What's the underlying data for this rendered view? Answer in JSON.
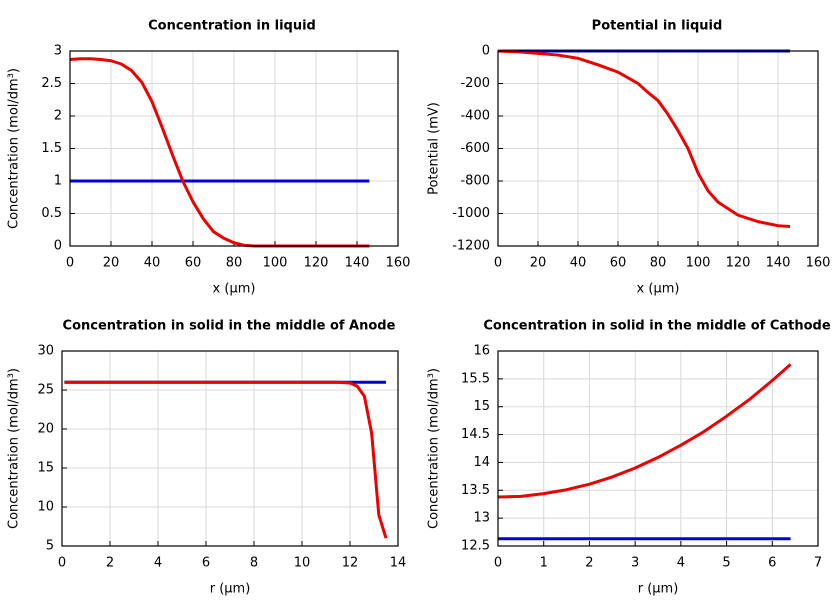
{
  "chart_data": [
    {
      "type": "line",
      "title": "Concentration in liquid",
      "xlabel": "x (µm)",
      "ylabel": "Concentration (mol/dm³)",
      "xlim": [
        0,
        160
      ],
      "ylim": [
        0,
        3
      ],
      "xticks": [
        0,
        20,
        40,
        60,
        80,
        100,
        120,
        140,
        160
      ],
      "yticks": [
        0,
        0.5,
        1,
        1.5,
        2,
        2.5,
        3
      ],
      "grid": true,
      "series": [
        {
          "color": "#0000dd",
          "x": [
            0,
            146
          ],
          "values": [
            1,
            1
          ]
        },
        {
          "color": "#ee0000",
          "x": [
            0,
            5,
            10,
            15,
            20,
            25,
            30,
            35,
            40,
            45,
            50,
            55,
            60,
            65,
            70,
            75,
            80,
            85,
            90,
            100,
            120,
            146
          ],
          "values": [
            2.87,
            2.88,
            2.88,
            2.87,
            2.85,
            2.8,
            2.7,
            2.52,
            2.22,
            1.82,
            1.4,
            1.0,
            0.68,
            0.42,
            0.22,
            0.12,
            0.05,
            0.01,
            0,
            0,
            0,
            0
          ]
        }
      ]
    },
    {
      "type": "line",
      "title": "Potential in liquid",
      "xlabel": "x (µm)",
      "ylabel": "Potential (mV)",
      "xlim": [
        0,
        160
      ],
      "ylim": [
        -1200,
        0
      ],
      "xticks": [
        0,
        20,
        40,
        60,
        80,
        100,
        120,
        140,
        160
      ],
      "yticks": [
        -1200,
        -1000,
        -800,
        -600,
        -400,
        -200,
        0
      ],
      "grid": true,
      "series": [
        {
          "color": "#0000dd",
          "x": [
            0,
            146
          ],
          "values": [
            0,
            0
          ]
        },
        {
          "color": "#ee0000",
          "x": [
            0,
            10,
            20,
            30,
            40,
            50,
            60,
            70,
            75,
            80,
            85,
            90,
            95,
            100,
            105,
            110,
            120,
            130,
            140,
            146
          ],
          "values": [
            0,
            -5,
            -15,
            -25,
            -45,
            -85,
            -130,
            -200,
            -255,
            -305,
            -390,
            -490,
            -600,
            -750,
            -860,
            -930,
            -1010,
            -1050,
            -1075,
            -1080
          ]
        }
      ]
    },
    {
      "type": "line",
      "title": "Concentration in solid in the middle of Anode",
      "xlabel": "r (µm)",
      "ylabel": "Concentration (mol/dm³)",
      "xlim": [
        0,
        14
      ],
      "ylim": [
        5,
        30
      ],
      "xticks": [
        0,
        2,
        4,
        6,
        8,
        10,
        12,
        14
      ],
      "yticks": [
        5,
        10,
        15,
        20,
        25,
        30
      ],
      "grid": true,
      "series": [
        {
          "color": "#0000dd",
          "x": [
            0.1,
            13.5
          ],
          "values": [
            26,
            26
          ]
        },
        {
          "color": "#ee0000",
          "x": [
            0.1,
            2,
            4,
            6,
            8,
            10,
            11.5,
            12,
            12.3,
            12.6,
            12.9,
            13.2,
            13.5
          ],
          "values": [
            26,
            26,
            26,
            26,
            26,
            26,
            26,
            25.9,
            25.5,
            24.2,
            19.5,
            9,
            6
          ]
        }
      ]
    },
    {
      "type": "line",
      "title": "Concentration in solid in the middle of Cathode",
      "xlabel": "r (µm)",
      "ylabel": "Concentration (mol/dm³)",
      "xlim": [
        0,
        7
      ],
      "ylim": [
        12.5,
        16
      ],
      "xticks": [
        0,
        1,
        2,
        3,
        4,
        5,
        6,
        7
      ],
      "yticks": [
        12.5,
        13,
        13.5,
        14,
        14.5,
        15,
        15.5,
        16
      ],
      "grid": true,
      "series": [
        {
          "color": "#0000dd",
          "x": [
            0,
            6.4
          ],
          "values": [
            12.63,
            12.63
          ]
        },
        {
          "color": "#ee0000",
          "x": [
            0,
            0.5,
            1,
            1.5,
            2,
            2.5,
            3,
            3.5,
            4,
            4.5,
            5,
            5.5,
            6,
            6.4
          ],
          "values": [
            13.38,
            13.39,
            13.44,
            13.51,
            13.61,
            13.74,
            13.9,
            14.09,
            14.31,
            14.55,
            14.83,
            15.13,
            15.47,
            15.76
          ]
        }
      ]
    }
  ]
}
